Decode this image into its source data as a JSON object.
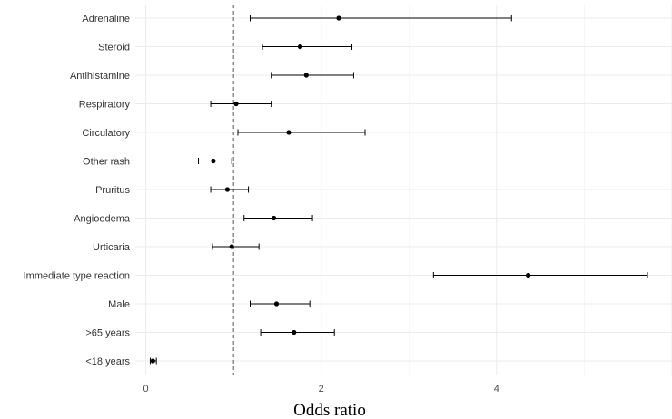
{
  "chart_data": {
    "type": "forest",
    "xlabel": "Odds ratio",
    "ylabel": "",
    "xlim": [
      -0.12,
      6.0
    ],
    "x_ticks": [
      0,
      2,
      4
    ],
    "x_tick_labels": [
      "0",
      "2",
      "4"
    ],
    "reference_line": 1,
    "grid": true,
    "rows": [
      {
        "label": "Adrenaline",
        "or": 2.2,
        "lower": 1.19,
        "upper": 4.17
      },
      {
        "label": "Steroid",
        "or": 1.76,
        "lower": 1.33,
        "upper": 2.35
      },
      {
        "label": "Antihistamine",
        "or": 1.83,
        "lower": 1.43,
        "upper": 2.37
      },
      {
        "label": "Respiratory",
        "or": 1.03,
        "lower": 0.74,
        "upper": 1.43
      },
      {
        "label": "Circulatory",
        "or": 1.63,
        "lower": 1.05,
        "upper": 2.5
      },
      {
        "label": "Other rash",
        "or": 0.77,
        "lower": 0.6,
        "upper": 0.98
      },
      {
        "label": "Pruritus",
        "or": 0.93,
        "lower": 0.74,
        "upper": 1.17
      },
      {
        "label": "Angioedema",
        "or": 1.46,
        "lower": 1.12,
        "upper": 1.9
      },
      {
        "label": "Urticaria",
        "or": 0.98,
        "lower": 0.76,
        "upper": 1.29
      },
      {
        "label": "Immediate type reaction",
        "or": 4.36,
        "lower": 3.28,
        "upper": 5.72
      },
      {
        "label": "Male",
        "or": 1.49,
        "lower": 1.19,
        "upper": 1.87
      },
      {
        "label": ">65 years",
        "or": 1.69,
        "lower": 1.31,
        "upper": 2.15
      },
      {
        "label": "<18 years",
        "or": 0.08,
        "lower": 0.05,
        "upper": 0.12
      }
    ]
  }
}
